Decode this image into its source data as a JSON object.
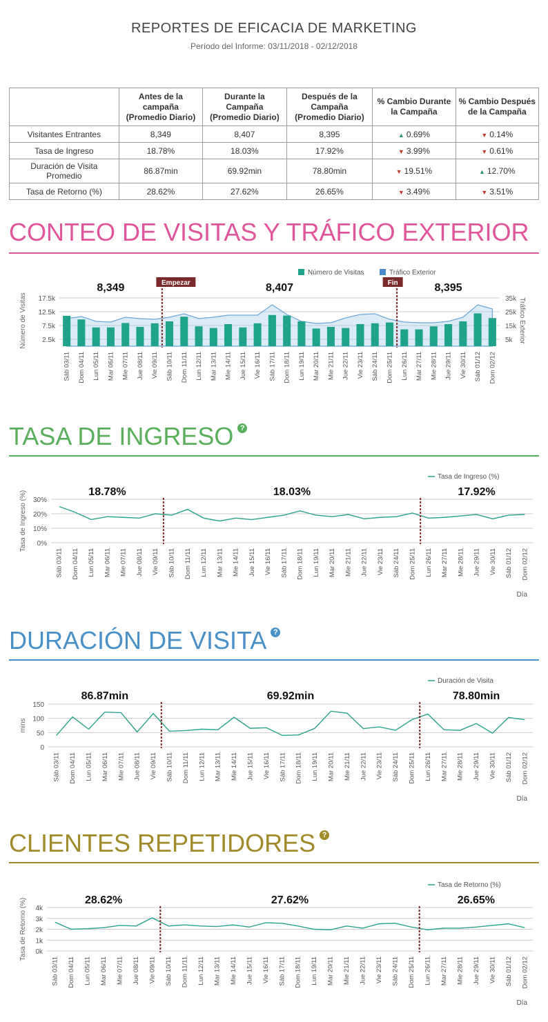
{
  "header": {
    "title": "REPORTES DE EFICACIA DE MARKETING",
    "subtitle": "Período del Informe: 03/11/2018 - 02/12/2018"
  },
  "summary_table": {
    "headers": [
      "",
      "Antes de la campaña (Promedio Diario)",
      "Durante la Campaña (Promedio Diario)",
      "Después de la Campaña (Promedio Diario)",
      "% Cambio Durante la Campaña",
      "% Cambio Después de la Campaña"
    ],
    "rows": [
      {
        "label": "Visitantes Entrantes",
        "before": "8,349",
        "during": "8,407",
        "after": "8,395",
        "chg_during": "0.69%",
        "dir_during": "up",
        "chg_after": "0.14%",
        "dir_after": "down"
      },
      {
        "label": "Tasa de Ingreso",
        "before": "18.78%",
        "during": "18.03%",
        "after": "17.92%",
        "chg_during": "3.99%",
        "dir_during": "down",
        "chg_after": "0.61%",
        "dir_after": "down"
      },
      {
        "label": "Duración de Visita Promedio",
        "before": "86.87min",
        "during": "69.92min",
        "after": "78.80min",
        "chg_during": "19.51%",
        "dir_during": "down",
        "chg_after": "12.70%",
        "dir_after": "up"
      },
      {
        "label": "Tasa de Retorno (%)",
        "before": "28.62%",
        "during": "27.62%",
        "after": "26.65%",
        "chg_during": "3.49%",
        "dir_during": "down",
        "chg_after": "3.51%",
        "dir_after": "down"
      }
    ]
  },
  "sections": {
    "visits": {
      "title": "CONTEO DE VISITAS Y TRÁFICO EXTERIOR",
      "color": "#e0559a"
    },
    "entry": {
      "title": "TASA DE INGRESO",
      "color": "#5aaf5a"
    },
    "duration": {
      "title": "DURACIÓN DE VISITA",
      "color": "#4a90c8"
    },
    "returning": {
      "title": "CLIENTES REPETIDORES",
      "color": "#a08a2a"
    }
  },
  "colors": {
    "bar": "#1fa38a",
    "area": "#9cc8e8",
    "line": "#2aa38a",
    "marker": "#7a2a2a",
    "grid": "#cccccc"
  },
  "chart_data": [
    {
      "id": "visits",
      "type": "bar",
      "x": [
        "Sáb 03/11",
        "Dom 04/11",
        "Lun 05/11",
        "Mar 06/11",
        "Mie 07/11",
        "Jue 08/11",
        "Vie 09/11",
        "Sáb 10/11",
        "Dom 11/11",
        "Lun 12/11",
        "Mar 13/11",
        "Mie 14/11",
        "Jue 15/11",
        "Vie 16/11",
        "Sáb 17/11",
        "Dom 18/11",
        "Lun 19/11",
        "Mar 20/11",
        "Mie 21/11",
        "Jue 22/11",
        "Vie 23/11",
        "Sáb 24/11",
        "Dom 25/11",
        "Lun 26/11",
        "Mar 27/11",
        "Mie 28/11",
        "Jue 29/11",
        "Vie 30/11",
        "Sáb 01/12",
        "Dom 02/12"
      ],
      "series": [
        {
          "name": "Número de Visitas",
          "kind": "bar",
          "axis": "left",
          "values": [
            11000,
            9700,
            6800,
            6800,
            8400,
            7000,
            8300,
            9000,
            10700,
            7200,
            6600,
            8000,
            6800,
            8300,
            11300,
            11100,
            9000,
            6400,
            7000,
            6600,
            8000,
            8300,
            8600,
            6100,
            6100,
            7200,
            8000,
            9000,
            11900,
            10200
          ]
        },
        {
          "name": "Tráfico Exterior",
          "kind": "area",
          "axis": "right",
          "values": [
            20000,
            21500,
            18000,
            17500,
            21000,
            20000,
            19500,
            21000,
            23500,
            20000,
            21000,
            22500,
            22500,
            22500,
            30000,
            23000,
            18000,
            16500,
            17000,
            20500,
            23000,
            23500,
            19500,
            17500,
            17000,
            17000,
            18000,
            21000,
            30000,
            27000
          ]
        }
      ],
      "ylabel_left": "Número de Visitas",
      "ylabel_right": "Tráfico Exterior",
      "yticks_left": [
        "2.5k",
        "7.5k",
        "12.5k",
        "17.5k"
      ],
      "yticks_left_values": [
        2500,
        7500,
        12500,
        17500
      ],
      "ylim_left": [
        0,
        18500
      ],
      "yticks_right": [
        "5k",
        "15k",
        "25k",
        "35k"
      ],
      "yticks_right_values": [
        5000,
        15000,
        25000,
        35000
      ],
      "ylim_right": [
        0,
        37000
      ],
      "legend": "top-right",
      "period_labels": [
        "8,349",
        "8,407",
        "8,395"
      ],
      "marker_labels": [
        "Empezar",
        "Fin"
      ],
      "start_after": "Vie 09/11",
      "end_after": "Dom 25/11"
    },
    {
      "id": "entry",
      "type": "line",
      "x": [
        "Sáb 03/11",
        "Dom 04/11",
        "Lun 05/11",
        "Mar 06/11",
        "Mie 07/11",
        "Jue 08/11",
        "Vie 09/11",
        "Sáb 10/11",
        "Dom 11/11",
        "Lun 12/11",
        "Mar 13/11",
        "Mie 14/11",
        "Jue 15/11",
        "Vie 16/11",
        "Sáb 17/11",
        "Dom 18/11",
        "Lun 19/11",
        "Mar 20/11",
        "Mie 21/11",
        "Jue 22/11",
        "Vie 23/11",
        "Sáb 24/11",
        "Dom 25/11",
        "Lun 26/11",
        "Mar 27/11",
        "Mie 28/11",
        "Jue 29/11",
        "Vie 30/11",
        "Sáb 01/12",
        "Dom 02/12"
      ],
      "series": [
        {
          "name": "Tasa de Ingreso (%)",
          "values": [
            25,
            21,
            16,
            18,
            17.5,
            17,
            20,
            19,
            23,
            17,
            15,
            17,
            16,
            17.5,
            19,
            22,
            19,
            18,
            19.5,
            16.5,
            17.5,
            18,
            20.5,
            17,
            17.5,
            18.5,
            19.5,
            16.5,
            19,
            19.5
          ]
        }
      ],
      "ylabel": "Tasa de Ingreso (%)",
      "xlabel": "Día",
      "yticks": [
        "0%",
        "10%",
        "20%",
        "30%"
      ],
      "yticks_values": [
        0,
        10,
        20,
        30
      ],
      "ylim": [
        0,
        30
      ],
      "legend": "top-right",
      "period_labels": [
        "18.78%",
        "18.03%",
        "17.92%"
      ],
      "start_after": "Vie 09/11",
      "end_after": "Dom 25/11"
    },
    {
      "id": "duration",
      "type": "line",
      "x": [
        "Sáb 03/11",
        "Dom 04/11",
        "Lun 05/11",
        "Mar 06/11",
        "Mie 07/11",
        "Jue 08/11",
        "Vie 09/11",
        "Sáb 10/11",
        "Dom 11/11",
        "Lun 12/11",
        "Mar 13/11",
        "Mie 14/11",
        "Jue 15/11",
        "Vie 16/11",
        "Sáb 17/11",
        "Dom 18/11",
        "Lun 19/11",
        "Mar 20/11",
        "Mie 21/11",
        "Jue 22/11",
        "Vie 23/11",
        "Sáb 24/11",
        "Dom 25/11",
        "Lun 26/11",
        "Mar 27/11",
        "Mie 28/11",
        "Jue 29/11",
        "Vie 30/11",
        "Sáb 01/12",
        "Dom 02/12"
      ],
      "series": [
        {
          "name": "Duración de Visita",
          "values": [
            40,
            105,
            62,
            122,
            120,
            52,
            117,
            55,
            57,
            62,
            60,
            104,
            65,
            67,
            40,
            42,
            65,
            125,
            118,
            64,
            70,
            58,
            95,
            115,
            60,
            58,
            82,
            48,
            103,
            95
          ]
        }
      ],
      "ylabel": "mins",
      "xlabel": "Día",
      "yticks": [
        "0",
        "50",
        "100",
        "150"
      ],
      "yticks_values": [
        0,
        50,
        100,
        150
      ],
      "ylim": [
        0,
        150
      ],
      "legend": "top-right",
      "period_labels": [
        "86.87min",
        "69.92min",
        "78.80min"
      ],
      "start_after": "Vie 09/11",
      "end_after": "Dom 25/11"
    },
    {
      "id": "returning",
      "type": "line",
      "x": [
        "Sáb 03/11",
        "Dom 04/11",
        "Lun 05/11",
        "Mar 06/11",
        "Mie 07/11",
        "Jue 08/11",
        "Vie 09/11",
        "Sáb 10/11",
        "Dom 11/11",
        "Lun 12/11",
        "Mar 13/11",
        "Mie 14/11",
        "Jue 15/11",
        "Vie 16/11",
        "Sáb 17/11",
        "Dom 18/11",
        "Lun 19/11",
        "Mar 20/11",
        "Mie 21/11",
        "Jue 22/11",
        "Vie 23/11",
        "Sáb 24/11",
        "Dom 25/11",
        "Lun 26/11",
        "Mar 27/11",
        "Mie 28/11",
        "Jue 29/11",
        "Vie 30/11",
        "Sáb 01/12",
        "Dom 02/12"
      ],
      "series": [
        {
          "name": "Tasa de Retorno (%)",
          "values": [
            2650,
            2000,
            2050,
            2150,
            2350,
            2300,
            3050,
            2300,
            2400,
            2300,
            2250,
            2400,
            2200,
            2600,
            2550,
            2300,
            2000,
            1950,
            2300,
            2100,
            2500,
            2550,
            2200,
            1950,
            2100,
            2100,
            2200,
            2350,
            2500,
            2150
          ]
        }
      ],
      "ylabel": "Tasa de Retorno (%)",
      "xlabel": "Día",
      "yticks": [
        "0k",
        "1k",
        "2k",
        "3k",
        "4k"
      ],
      "yticks_values": [
        0,
        1000,
        2000,
        3000,
        4000
      ],
      "ylim": [
        0,
        4000
      ],
      "legend": "top-right",
      "period_labels": [
        "28.62%",
        "27.62%",
        "26.65%"
      ],
      "start_after": "Vie 09/11",
      "end_after": "Dom 25/11"
    }
  ]
}
